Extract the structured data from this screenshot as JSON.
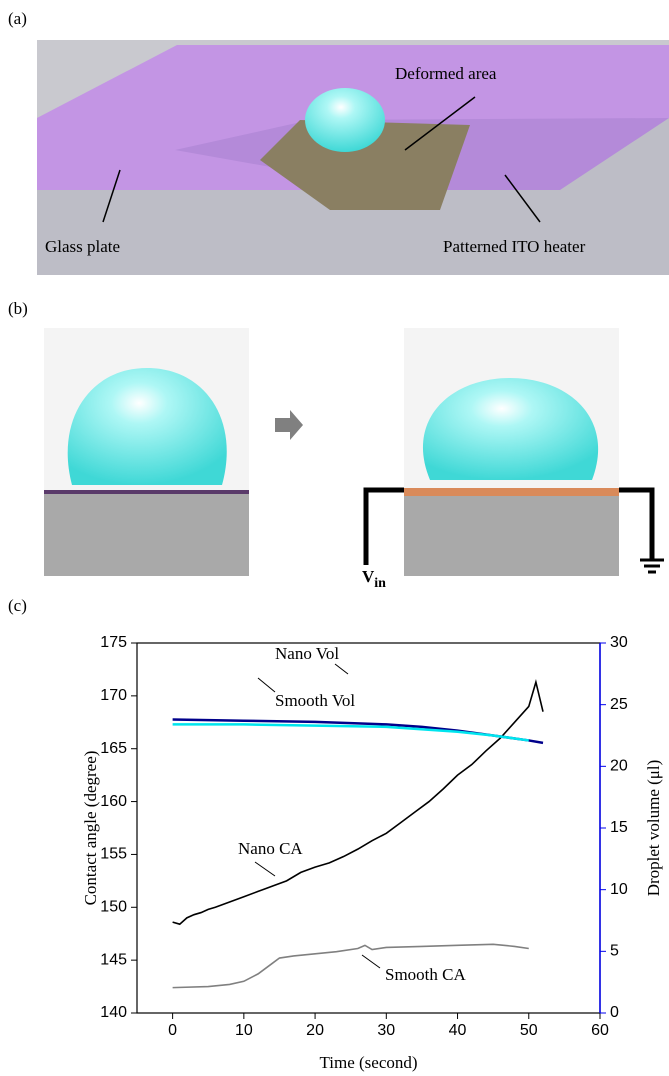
{
  "panel_a": {
    "label": "(a)",
    "deformed_area": "Deformed area",
    "glass_plate": "Glass plate",
    "ito_heater": "Patterned ITO heater"
  },
  "panel_b": {
    "label": "(b)",
    "voltage": {
      "main": "V",
      "sub": "in"
    }
  },
  "panel_c": {
    "label": "(c)"
  },
  "chart_data": {
    "type": "line",
    "x_label": "Time (second)",
    "y_label": "Contact angle (degree)",
    "y2_label": "Droplet volume (μl)",
    "xlim": [
      -5,
      60
    ],
    "xticks": [
      0,
      10,
      20,
      30,
      40,
      50,
      60
    ],
    "ylim": [
      140,
      175
    ],
    "yticks": [
      140,
      145,
      150,
      155,
      160,
      165,
      170,
      175
    ],
    "y2lim": [
      0,
      30
    ],
    "y2ticks": [
      0,
      5,
      10,
      15,
      20,
      25,
      30
    ],
    "y2_color": "#0000ee",
    "series": [
      {
        "name": "Nano CA",
        "color": "#000000",
        "x": [
          0,
          1,
          2,
          3,
          4,
          5,
          6,
          8,
          10,
          12,
          14,
          16,
          18,
          20,
          22,
          24,
          26,
          28,
          30,
          32,
          34,
          36,
          38,
          40,
          42,
          44,
          46,
          48,
          50,
          51,
          52
        ],
        "values": [
          148.6,
          148.4,
          149.0,
          149.3,
          149.5,
          149.8,
          150.0,
          150.5,
          151.0,
          151.5,
          152.0,
          152.5,
          153.3,
          153.8,
          154.2,
          154.8,
          155.5,
          156.3,
          157.0,
          158.0,
          159.0,
          160.0,
          161.2,
          162.5,
          163.5,
          164.8,
          166.0,
          167.5,
          169.0,
          171.3,
          168.5
        ]
      },
      {
        "name": "Smooth CA",
        "color": "#808080",
        "x": [
          0,
          5,
          8,
          10,
          12,
          14,
          15,
          17,
          20,
          23,
          26,
          27,
          28,
          30,
          35,
          40,
          45,
          48,
          50
        ],
        "values": [
          142.4,
          142.5,
          142.7,
          143.0,
          143.7,
          144.7,
          145.2,
          145.4,
          145.6,
          145.8,
          146.1,
          146.4,
          146.0,
          146.2,
          146.3,
          146.4,
          146.5,
          146.3,
          146.1
        ]
      },
      {
        "name": "Nano Vol",
        "color": "#00008b",
        "axis": "y2",
        "x": [
          0,
          10,
          20,
          25,
          30,
          35,
          40,
          45,
          50,
          52
        ],
        "values": [
          23.8,
          23.7,
          23.6,
          23.5,
          23.4,
          23.2,
          22.9,
          22.5,
          22.1,
          21.9
        ]
      },
      {
        "name": "Smooth Vol",
        "color": "#00e5ee",
        "axis": "y2",
        "x": [
          0,
          10,
          20,
          30,
          40,
          45,
          50
        ],
        "values": [
          23.4,
          23.4,
          23.3,
          23.2,
          22.8,
          22.5,
          22.1
        ]
      }
    ]
  }
}
